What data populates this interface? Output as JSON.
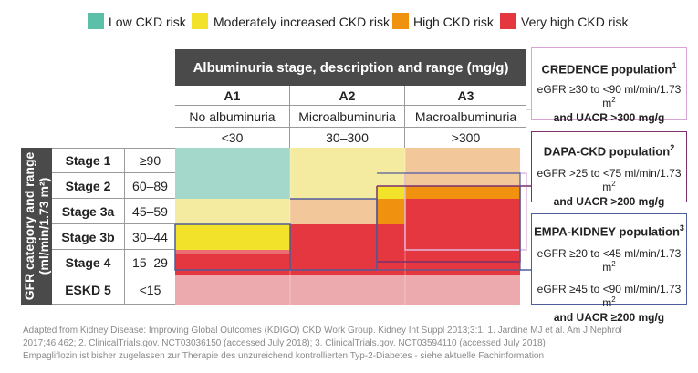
{
  "legend": {
    "low": {
      "label": "Low CKD risk",
      "color": "#5cbfa8"
    },
    "moderate": {
      "label": "Moderately increased CKD risk",
      "color": "#f3e22a"
    },
    "high": {
      "label": "High CKD risk",
      "color": "#f0910f"
    },
    "very_high": {
      "label": "Very high CKD risk",
      "color": "#e5373f"
    }
  },
  "albuminuria": {
    "title": "Albuminuria stage, description and range (mg/g)",
    "columns": [
      {
        "stage": "A1",
        "description": "No albuminuria",
        "range": "<30"
      },
      {
        "stage": "A2",
        "description": "Microalbuminuria",
        "range": "30–300"
      },
      {
        "stage": "A3",
        "description": "Macroalbuminuria",
        "range": ">300"
      }
    ]
  },
  "gfr": {
    "axis_label": "GFR category and range (ml/min/1.73 m²)",
    "rows": [
      {
        "stage": "Stage 1",
        "range": "≥90"
      },
      {
        "stage": "Stage 2",
        "range": "60–89"
      },
      {
        "stage": "Stage 3a",
        "range": "45–59"
      },
      {
        "stage": "Stage 3b",
        "range": "30–44"
      },
      {
        "stage": "Stage 4",
        "range": "15–29"
      },
      {
        "stage": "ESKD 5",
        "range": "<15"
      }
    ]
  },
  "populations": {
    "credence": {
      "title": "CREDENCE population",
      "sup": "1",
      "line1": "eGFR ≥30 to <90 ml/min/1.73 m",
      "line1_sup": "2",
      "line2": "and UACR >300 mg/g",
      "color": "#d9a3d4"
    },
    "dapa": {
      "title": "DAPA-CKD population",
      "sup": "2",
      "line1": "eGFR >25 to <75 ml/min/1.73 m",
      "line1_sup": "2",
      "line2": "and UACR >200 mg/g",
      "color": "#7a2f6e"
    },
    "empa": {
      "title": "EMPA-KIDNEY population",
      "sup": "3",
      "line1": "eGFR ≥20 to <45 ml/min/1.73 m",
      "line1_sup": "2",
      "line2": "eGFR ≥45 to <90 ml/min/1.73 m",
      "line2_sup": "2",
      "line3": "and UACR ≥200 mg/g",
      "color": "#4f5d99"
    }
  },
  "footnotes": {
    "line1": "Adapted from Kidney Disease: Improving Global Outcomes (KDIGO) CKD Work Group. Kidney Int Suppl 2013;3:1. 1. Jardine MJ et al. Am J Nephrol",
    "line2": "2017;46:462; 2. ClinicalTrials.gov. NCT03036150 (accessed July 2018); 3. ClinicalTrials.gov. NCT03594110 (accessed July 2018)",
    "line3": "Empagliflozin ist bisher zugelassen zur Therapie des unzureichend kontrollierten Typ-2-Diabetes - siehe aktuelle Fachinformation"
  }
}
